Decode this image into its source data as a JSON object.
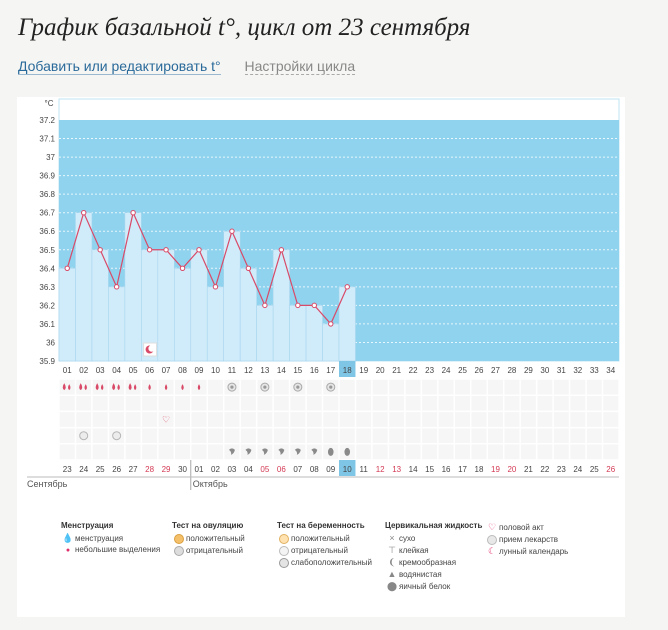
{
  "header": {
    "title": "График базальной t°, цикл от 23 сентября",
    "link_edit": "Добавить или редактировать t°",
    "link_settings": "Настройки цикла"
  },
  "colors": {
    "sky": "#8fd3ee",
    "bar": "#d0ecfa",
    "bar_edge": "#a8d6ee",
    "line": "#d94a68",
    "highlight": "#7fc6e6",
    "red_text": "#d43a55",
    "grid": "#e4e4e4"
  },
  "chart_data": {
    "type": "line",
    "title": "График базальной t°, цикл от 23 сентября",
    "ylabel": "°C",
    "ylim": [
      35.9,
      37.2
    ],
    "yticks": [
      "37.2",
      "37.1",
      "37",
      "36.9",
      "36.8",
      "36.7",
      "36.6",
      "36.5",
      "36.4",
      "36.3",
      "36.2",
      "36.1",
      "36",
      "35.9"
    ],
    "cycle_days": [
      "01",
      "02",
      "03",
      "04",
      "05",
      "06",
      "07",
      "08",
      "09",
      "10",
      "11",
      "12",
      "13",
      "14",
      "15",
      "16",
      "17",
      "18",
      "19",
      "20",
      "21",
      "22",
      "23",
      "24",
      "25",
      "26",
      "27",
      "28",
      "29",
      "30",
      "31",
      "32",
      "33",
      "34"
    ],
    "current_day_index": 17,
    "temperatures": [
      36.4,
      36.7,
      36.5,
      36.3,
      36.7,
      36.5,
      36.5,
      36.4,
      36.5,
      36.3,
      36.6,
      36.4,
      36.2,
      36.5,
      36.2,
      36.2,
      36.1,
      36.3
    ],
    "dates": [
      "23",
      "24",
      "25",
      "26",
      "27",
      "28",
      "29",
      "30",
      "01",
      "02",
      "03",
      "04",
      "05",
      "06",
      "07",
      "08",
      "09",
      "10",
      "11",
      "12",
      "13",
      "14",
      "15",
      "16",
      "17",
      "18",
      "19",
      "20",
      "21",
      "22",
      "23",
      "24",
      "25",
      "26"
    ],
    "red_date_indices": [
      5,
      6,
      12,
      13,
      19,
      20,
      26,
      27,
      33
    ],
    "months": [
      {
        "name": "Сентябрь",
        "start": 0
      },
      {
        "name": "Октябрь",
        "start": 8
      }
    ],
    "markers": {
      "moon_calendar": [
        5
      ],
      "menstruation_heavy": [
        0,
        1,
        2,
        3,
        4
      ],
      "menstruation_light": [
        5,
        6,
        7,
        8
      ],
      "ovulation_negative": [
        10,
        12,
        14,
        16
      ],
      "intercourse": [
        6
      ],
      "medication": [
        1,
        3
      ],
      "mucus_creamy": [
        10,
        11,
        12,
        13,
        14,
        15
      ],
      "mucus_eggwhite": [
        16,
        17
      ]
    }
  },
  "legend": {
    "menstruation": {
      "title": "Менструация",
      "items": [
        "менструация",
        "небольшие выделения"
      ]
    },
    "ovulation": {
      "title": "Тест на овуляцию",
      "items": [
        "положительный",
        "отрицательный"
      ]
    },
    "pregnancy": {
      "title": "Тест на беременность",
      "items": [
        "положительный",
        "отрицательный",
        "слабоположительный"
      ]
    },
    "mucus": {
      "title": "Цервикальная жидкость",
      "items": [
        "сухо",
        "клейкая",
        "кремообразная",
        "водянистая",
        "яичный белок"
      ]
    },
    "other": {
      "items": [
        "половой акт",
        "прием лекарств",
        "лунный календарь"
      ]
    }
  }
}
